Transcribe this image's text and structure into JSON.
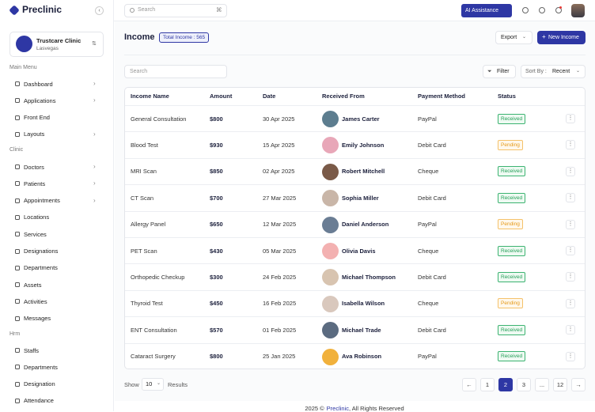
{
  "brand": "Preclinic",
  "search_placeholder": "Search",
  "shortcut": "⌘",
  "ai_button": "AI Assistance",
  "clinic": {
    "name": "Trustcare Clinic",
    "location": "Lasvegas"
  },
  "sidebar": [
    {
      "title": "Main Menu",
      "items": [
        {
          "label": "Dashboard",
          "submenu": true
        },
        {
          "label": "Applications",
          "submenu": true
        },
        {
          "label": "Front End",
          "submenu": false
        },
        {
          "label": "Layouts",
          "submenu": true
        }
      ]
    },
    {
      "title": "Clinic",
      "items": [
        {
          "label": "Doctors",
          "submenu": true
        },
        {
          "label": "Patients",
          "submenu": true
        },
        {
          "label": "Appointments",
          "submenu": true
        },
        {
          "label": "Locations",
          "submenu": false
        },
        {
          "label": "Services",
          "submenu": false
        },
        {
          "label": "Designations",
          "submenu": false
        },
        {
          "label": "Departments",
          "submenu": false
        },
        {
          "label": "Assets",
          "submenu": false
        },
        {
          "label": "Activities",
          "submenu": false
        },
        {
          "label": "Messages",
          "submenu": false
        }
      ]
    },
    {
      "title": "Hrm",
      "items": [
        {
          "label": "Staffs",
          "submenu": false
        },
        {
          "label": "Departments",
          "submenu": false
        },
        {
          "label": "Designation",
          "submenu": false
        },
        {
          "label": "Attendance",
          "submenu": false
        }
      ]
    }
  ],
  "page": {
    "title": "Income",
    "badge": "Total Income : 565",
    "export": "Export",
    "new_button": "New Income"
  },
  "toolbar": {
    "search_placeholder": "Search",
    "filter": "Filter",
    "sort_label": "Sort By :",
    "sort_value": "Recent"
  },
  "table": {
    "headers": [
      "Income Name",
      "Amount",
      "Date",
      "Received From",
      "Payment Method",
      "Status"
    ],
    "rows": [
      [
        "General Consultation",
        "$800",
        "30 Apr 2025",
        "James Carter",
        "PayPal",
        "Received"
      ],
      [
        "Blood Test",
        "$930",
        "15 Apr 2025",
        "Emily Johnson",
        "Debit Card",
        "Pending"
      ],
      [
        "MRI Scan",
        "$850",
        "02 Apr 2025",
        "Robert Mitchell",
        "Cheque",
        "Received"
      ],
      [
        "CT Scan",
        "$700",
        "27 Mar 2025",
        "Sophia Miller",
        "Debit Card",
        "Received"
      ],
      [
        "Allergy Panel",
        "$650",
        "12 Mar 2025",
        "Daniel Anderson",
        "PayPal",
        "Pending"
      ],
      [
        "PET Scan",
        "$430",
        "05 Mar 2025",
        "Olivia Davis",
        "Cheque",
        "Received"
      ],
      [
        "Orthopedic Checkup",
        "$300",
        "24 Feb 2025",
        "Michael Thompson",
        "Debit Card",
        "Received"
      ],
      [
        "Thyroid Test",
        "$450",
        "16 Feb 2025",
        "Isabella Wilson",
        "Cheque",
        "Pending"
      ],
      [
        "ENT Consultation",
        "$570",
        "01 Feb 2025",
        "Michael Trade",
        "Debit Card",
        "Received"
      ],
      [
        "Cataract Surgery",
        "$800",
        "25 Jan 2025",
        "Ava Robinson",
        "PayPal",
        "Received"
      ]
    ]
  },
  "pagination": {
    "show": "Show",
    "count": "10",
    "results": "Results",
    "pages": [
      "1",
      "2",
      "3",
      "...",
      "12"
    ],
    "active": "2"
  },
  "footer": {
    "prefix": "2025 ©",
    "brand": "Preclinic",
    "suffix": ", All Rights Reserved"
  }
}
